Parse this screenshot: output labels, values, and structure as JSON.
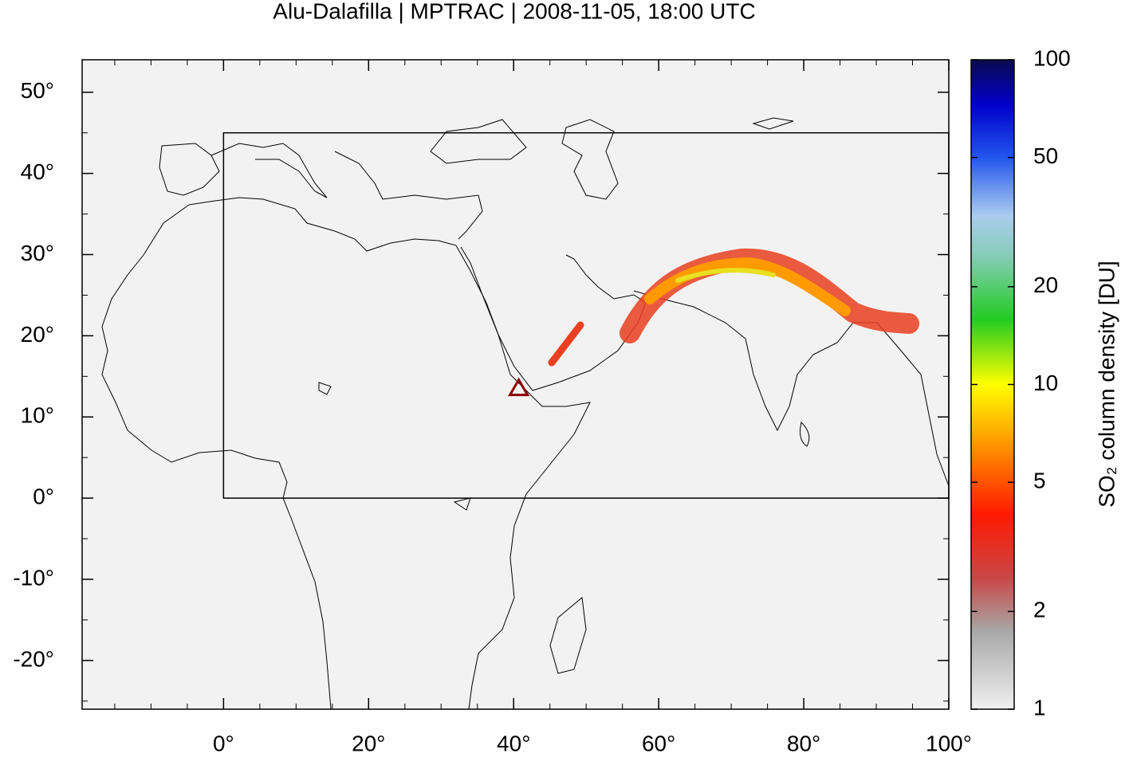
{
  "chart_data": {
    "type": "map",
    "title": "Alu-Dalafilla | MPTRAC | 2008-11-05, 18:00 UTC",
    "xlim": [
      -19.5,
      100
    ],
    "ylim": [
      -26,
      54
    ],
    "xticks": [
      {
        "value": 0,
        "label": "0°"
      },
      {
        "value": 20,
        "label": "20°"
      },
      {
        "value": 40,
        "label": "40°"
      },
      {
        "value": 60,
        "label": "60°"
      },
      {
        "value": 80,
        "label": "80°"
      },
      {
        "value": 100,
        "label": "100°"
      }
    ],
    "yticks": [
      {
        "value": -20,
        "label": "-20°"
      },
      {
        "value": -10,
        "label": "-10°"
      },
      {
        "value": 0,
        "label": "0°"
      },
      {
        "value": 10,
        "label": "10°"
      },
      {
        "value": 20,
        "label": "20°"
      },
      {
        "value": 30,
        "label": "30°"
      },
      {
        "value": 40,
        "label": "40°"
      },
      {
        "value": 50,
        "label": "50°"
      }
    ],
    "colorbar": {
      "label": "SO₂ column density [DU]",
      "lim": [
        1,
        100
      ],
      "log": true,
      "ticks": [
        1,
        2,
        5,
        10,
        20,
        50,
        100
      ]
    },
    "volcano": {
      "lon": 40.7,
      "lat": 13.6,
      "color": "#8b0000"
    },
    "box": {
      "xlim": [
        0,
        100
      ],
      "ylim": [
        0,
        45
      ]
    }
  }
}
